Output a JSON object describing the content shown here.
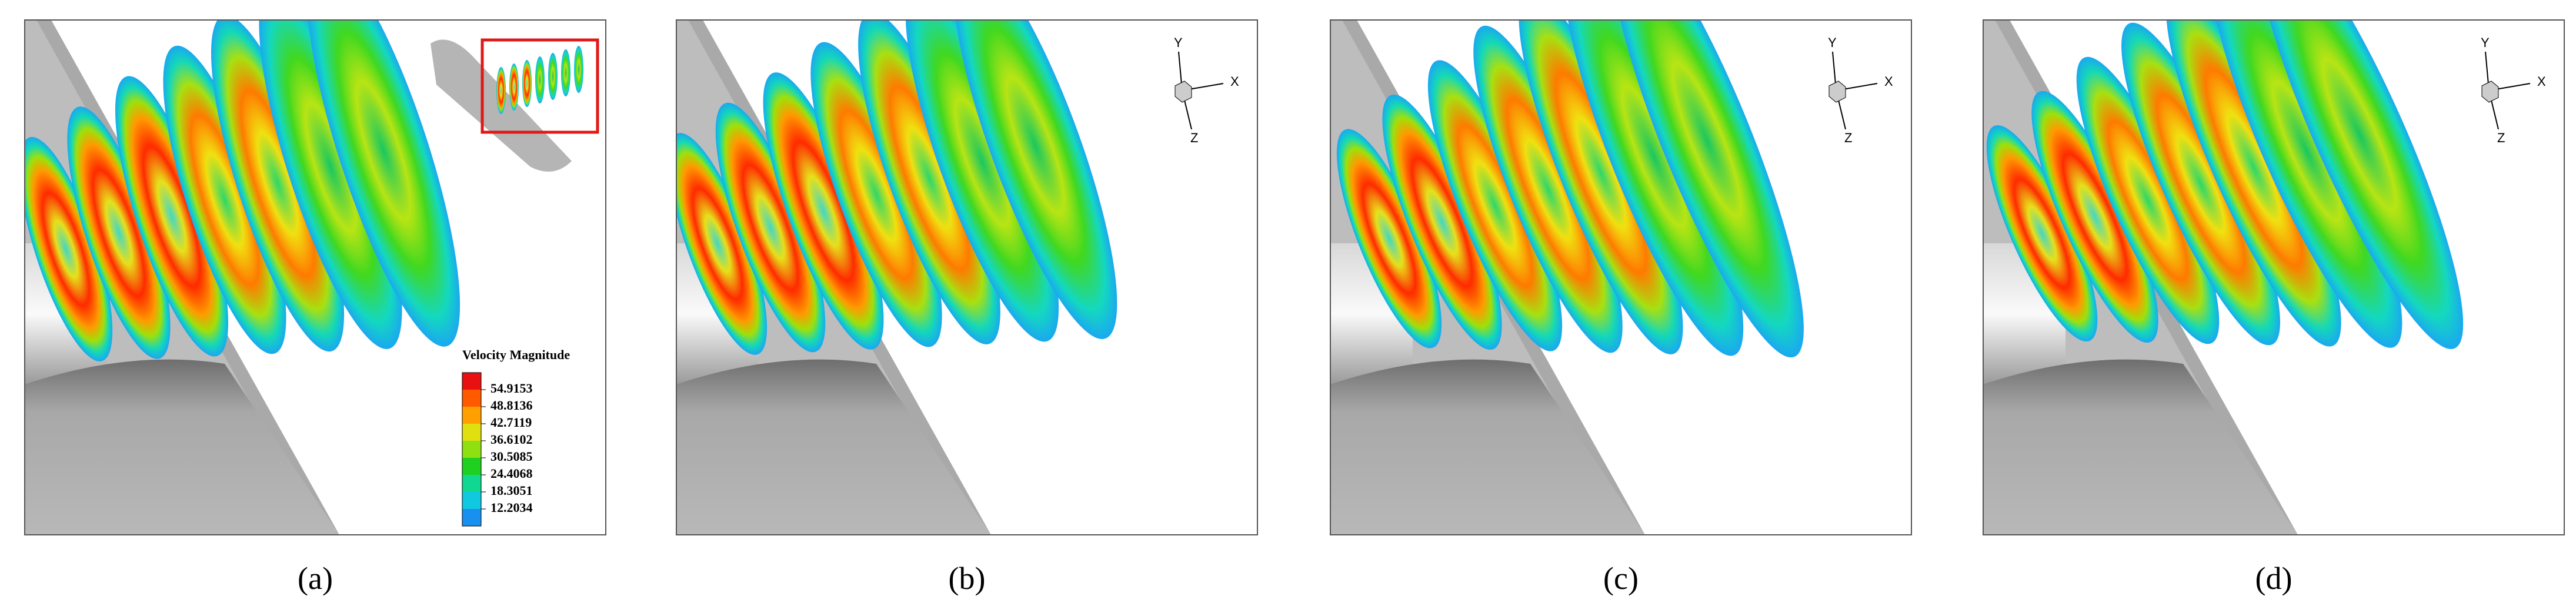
{
  "panels": [
    {
      "caption": "(a)",
      "colorbar": {
        "title": "Velocity Magnitude",
        "levels": [
          "54.9153",
          "48.8136",
          "42.7119",
          "36.6102",
          "30.5085",
          "24.4068",
          "18.3051",
          "12.2034"
        ]
      }
    },
    {
      "caption": "(b)",
      "triad": {
        "x": "X",
        "y": "Y",
        "z": "Z"
      }
    },
    {
      "caption": "(c)",
      "triad": {
        "x": "X",
        "y": "Y",
        "z": "Z"
      }
    },
    {
      "caption": "(d)",
      "triad": {
        "x": "X",
        "y": "Y",
        "z": "Z"
      }
    }
  ]
}
